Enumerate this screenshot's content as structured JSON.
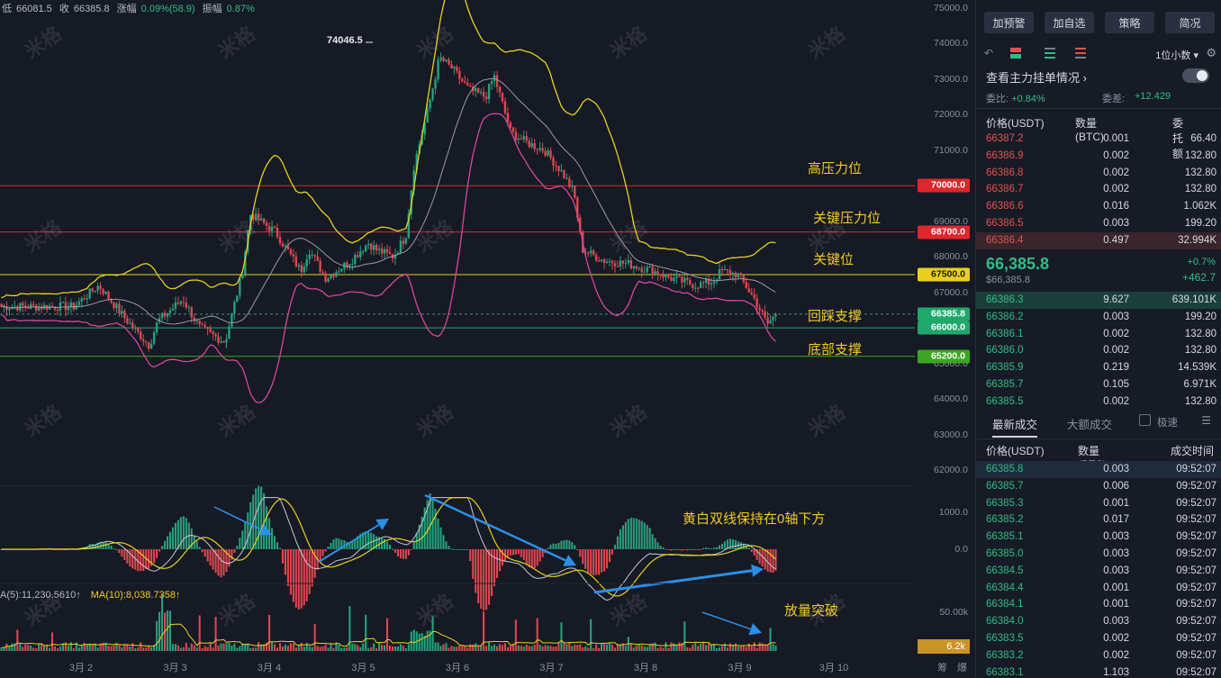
{
  "header": {
    "low_label": "低",
    "low_value": "66081.5",
    "close_label": "收",
    "close_value": "66385.8",
    "change_label": "涨幅",
    "change_value": "0.09%(58.9)",
    "amplitude_label": "振幅",
    "amplitude_value": "0.87%"
  },
  "watermark_text": "米格",
  "price_axis": [
    "75000.0",
    "74000.0",
    "73000.0",
    "72000.0",
    "71000.0",
    "70000.0",
    "69000.0",
    "68000.0",
    "67000.0",
    "66000.0",
    "65000.0",
    "64000.0",
    "63000.0",
    "62000.0"
  ],
  "macd_axis": [
    "1000.0",
    "0.0"
  ],
  "volume_axis": [
    "50.00k"
  ],
  "price_tags": [
    {
      "value": "70000.0",
      "color": "#e0252c"
    },
    {
      "value": "68700.0",
      "color": "#e0252c"
    },
    {
      "value": "67500.0",
      "color": "#e8cf1f"
    },
    {
      "value": "66385.8",
      "color": "#20a86a"
    },
    {
      "value": "66000.0",
      "color": "#20a86a"
    },
    {
      "value": "65200.0",
      "color": "#3aa81f"
    }
  ],
  "peak_label": "74046.5",
  "annotations": {
    "high_pressure": "高压力位",
    "key_pressure": "关键压力位",
    "key_level": "关键位",
    "pullback_support": "回踩支撑",
    "bottom_support": "底部支撑",
    "macd_note": "黄白双线保持在0轴下方",
    "volume_note": "放量突破"
  },
  "ma_line": {
    "ma5": "A(5):11,230.5610↑",
    "ma10": "MA(10):8,038.7358↑"
  },
  "volume_tag": "6.2k",
  "x_axis": [
    "3月 2",
    "3月 3",
    "3月 4",
    "3月 5",
    "3月 6",
    "3月 7",
    "3月 8",
    "3月 9",
    "3月 10"
  ],
  "corner_labels": [
    "筹",
    "爆"
  ],
  "chart_data": {
    "type": "candlestick",
    "title": "",
    "x_ticks": [
      "3月 2",
      "3月 3",
      "3月 4",
      "3月 5",
      "3月 6",
      "3月 7",
      "3月 8",
      "3月 9",
      "3月 10"
    ],
    "y_ticks": [
      62000,
      63000,
      64000,
      65000,
      66000,
      67000,
      68000,
      69000,
      70000,
      71000,
      72000,
      73000,
      74000,
      75000
    ],
    "ylim": [
      61900,
      75200
    ],
    "close_trend": [
      [
        0,
        66600
      ],
      [
        0.3,
        67200
      ],
      [
        0.6,
        66300
      ],
      [
        0.9,
        65500
      ],
      [
        1.0,
        66200
      ],
      [
        1.3,
        66800
      ],
      [
        1.5,
        66000
      ],
      [
        1.8,
        65600
      ],
      [
        2.0,
        67500
      ],
      [
        2.1,
        69200
      ],
      [
        2.4,
        68700
      ],
      [
        2.7,
        67600
      ],
      [
        2.8,
        68200
      ],
      [
        3.0,
        67400
      ],
      [
        3.3,
        67900
      ],
      [
        3.5,
        68400
      ],
      [
        3.6,
        68200
      ],
      [
        3.8,
        68000
      ],
      [
        3.95,
        68600
      ],
      [
        4.05,
        70600
      ],
      [
        4.2,
        72000
      ],
      [
        4.35,
        73600
      ],
      [
        4.5,
        73300
      ],
      [
        4.7,
        72700
      ],
      [
        4.9,
        72500
      ],
      [
        5.0,
        73100
      ],
      [
        5.2,
        71500
      ],
      [
        5.4,
        71200
      ],
      [
        5.6,
        71000
      ],
      [
        5.8,
        70400
      ],
      [
        5.95,
        69800
      ],
      [
        6.05,
        68200
      ],
      [
        6.3,
        67900
      ],
      [
        6.6,
        67800
      ],
      [
        6.9,
        67600
      ],
      [
        7.1,
        67400
      ],
      [
        7.4,
        67200
      ],
      [
        7.6,
        67300
      ],
      [
        7.7,
        67600
      ],
      [
        7.9,
        67500
      ],
      [
        8.1,
        66800
      ],
      [
        8.25,
        66100
      ],
      [
        8.35,
        66385.8
      ]
    ],
    "peak": 74046.5,
    "macd_range": [
      -1600,
      1400
    ],
    "volume_max": 60000
  },
  "panel": {
    "buttons": [
      "加预警",
      "加自选",
      "策略",
      "简况"
    ],
    "decimal_select": "1位小数",
    "depth_link": "查看主力挂单情况",
    "ratio_label": "委比:",
    "ratio_value": "+0.84%",
    "diff_label": "委差:",
    "diff_value": "+12.429",
    "ob_headers": [
      "价格(USDT)",
      "数量 (BTC)",
      "委托额"
    ],
    "asks": [
      [
        "66387.2",
        "0.001",
        "66.40"
      ],
      [
        "66386.9",
        "0.002",
        "132.80"
      ],
      [
        "66386.8",
        "0.002",
        "132.80"
      ],
      [
        "66386.7",
        "0.002",
        "132.80"
      ],
      [
        "66386.6",
        "0.016",
        "1.062K"
      ],
      [
        "66386.5",
        "0.003",
        "199.20"
      ],
      [
        "66386.4",
        "0.497",
        "32.994K"
      ]
    ],
    "last_price": "66,385.8",
    "last_price_sub": "$66,385.8",
    "last_pct": "+0.7%",
    "last_abs": "+462.7",
    "bids": [
      [
        "66386.3",
        "9.627",
        "639.101K"
      ],
      [
        "66386.2",
        "0.003",
        "199.20"
      ],
      [
        "66386.1",
        "0.002",
        "132.80"
      ],
      [
        "66386.0",
        "0.002",
        "132.80"
      ],
      [
        "66385.9",
        "0.219",
        "14.539K"
      ],
      [
        "66385.7",
        "0.105",
        "6.971K"
      ],
      [
        "66385.5",
        "0.002",
        "132.80"
      ]
    ],
    "tab_latest": "最新成交",
    "tab_large": "大额成交",
    "fast_label": "极速",
    "trade_headers": [
      "价格(USDT)",
      "数量(BTC)",
      "成交时间"
    ],
    "trades": [
      [
        "66385.8",
        "0.003",
        "09:52:07"
      ],
      [
        "66385.7",
        "0.006",
        "09:52:07"
      ],
      [
        "66385.3",
        "0.001",
        "09:52:07"
      ],
      [
        "66385.2",
        "0.017",
        "09:52:07"
      ],
      [
        "66385.1",
        "0.003",
        "09:52:07"
      ],
      [
        "66385.0",
        "0.003",
        "09:52:07"
      ],
      [
        "66384.5",
        "0.003",
        "09:52:07"
      ],
      [
        "66384.4",
        "0.001",
        "09:52:07"
      ],
      [
        "66384.1",
        "0.001",
        "09:52:07"
      ],
      [
        "66384.0",
        "0.003",
        "09:52:07"
      ],
      [
        "66383.5",
        "0.002",
        "09:52:07"
      ],
      [
        "66383.2",
        "0.002",
        "09:52:07"
      ],
      [
        "66383.1",
        "1.103",
        "09:52:07"
      ]
    ]
  }
}
